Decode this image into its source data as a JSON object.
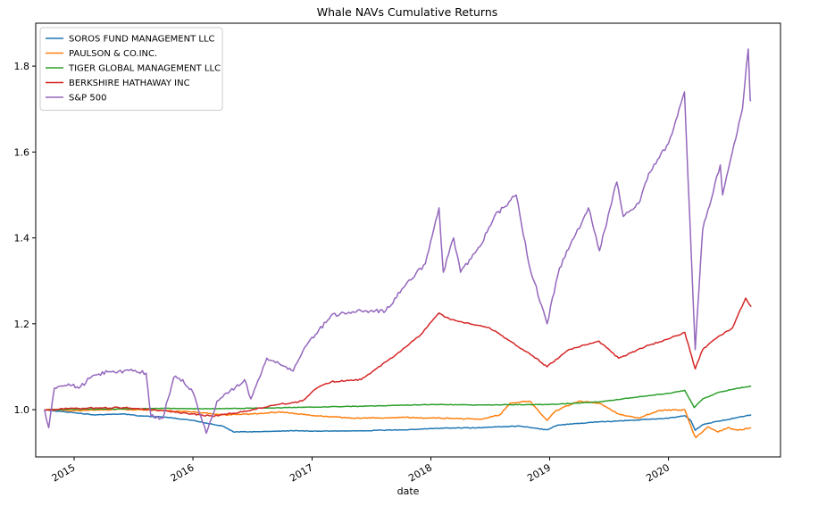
{
  "chart_data": {
    "type": "line",
    "title": "Whale NAVs Cumulative Returns",
    "xlabel": "date",
    "ylabel": "",
    "xlim": [
      "2014-09-05",
      "2020-12-10"
    ],
    "ylim": [
      0.89,
      1.9
    ],
    "x_ticks": [
      "2015-01-01",
      "2016-01-01",
      "2017-01-01",
      "2018-01-01",
      "2019-01-01",
      "2020-01-01"
    ],
    "x_tick_labels": [
      "2015",
      "2016",
      "2017",
      "2018",
      "2019",
      "2020"
    ],
    "y_ticks": [
      1.0,
      1.2,
      1.4,
      1.6,
      1.8
    ],
    "y_tick_labels": [
      "1.0",
      "1.2",
      "1.4",
      "1.6",
      "1.8"
    ],
    "grid": false,
    "legend_position": "top-left",
    "series": [
      {
        "name": "SOROS FUND MANAGEMENT LLC",
        "color": "#1f77b4",
        "points": [
          [
            "2014-10-02",
            1.0
          ],
          [
            "2014-11-01",
            0.997
          ],
          [
            "2015-01-01",
            0.993
          ],
          [
            "2015-03-01",
            0.988
          ],
          [
            "2015-06-01",
            0.99
          ],
          [
            "2015-08-01",
            0.985
          ],
          [
            "2015-10-01",
            0.983
          ],
          [
            "2016-01-01",
            0.975
          ],
          [
            "2016-03-01",
            0.966
          ],
          [
            "2016-04-01",
            0.962
          ],
          [
            "2016-05-05",
            0.948
          ],
          [
            "2016-08-01",
            0.949
          ],
          [
            "2016-11-01",
            0.951
          ],
          [
            "2017-02-01",
            0.95
          ],
          [
            "2017-06-01",
            0.951
          ],
          [
            "2017-10-01",
            0.953
          ],
          [
            "2018-02-01",
            0.957
          ],
          [
            "2018-06-01",
            0.958
          ],
          [
            "2018-10-01",
            0.962
          ],
          [
            "2018-12-24",
            0.953
          ],
          [
            "2019-01-25",
            0.964
          ],
          [
            "2019-05-01",
            0.97
          ],
          [
            "2019-09-01",
            0.975
          ],
          [
            "2020-01-01",
            0.98
          ],
          [
            "2020-02-20",
            0.986
          ],
          [
            "2020-03-10",
            0.974
          ],
          [
            "2020-03-23",
            0.952
          ],
          [
            "2020-04-15",
            0.965
          ],
          [
            "2020-06-01",
            0.973
          ],
          [
            "2020-08-01",
            0.982
          ],
          [
            "2020-09-11",
            0.988
          ]
        ]
      },
      {
        "name": "PAULSON & CO.INC.",
        "color": "#ff7f0e",
        "points": [
          [
            "2014-10-02",
            1.0
          ],
          [
            "2015-01-01",
            0.998
          ],
          [
            "2015-06-01",
            1.001
          ],
          [
            "2015-10-01",
            0.998
          ],
          [
            "2016-01-01",
            0.995
          ],
          [
            "2016-04-01",
            0.988
          ],
          [
            "2016-07-01",
            0.99
          ],
          [
            "2016-10-01",
            0.995
          ],
          [
            "2017-01-01",
            0.986
          ],
          [
            "2017-06-01",
            0.98
          ],
          [
            "2017-10-01",
            0.982
          ],
          [
            "2018-02-01",
            0.98
          ],
          [
            "2018-06-01",
            0.978
          ],
          [
            "2018-08-01",
            0.988
          ],
          [
            "2018-09-01",
            1.015
          ],
          [
            "2018-11-01",
            1.02
          ],
          [
            "2018-12-24",
            0.975
          ],
          [
            "2019-01-20",
            0.998
          ],
          [
            "2019-04-01",
            1.02
          ],
          [
            "2019-06-01",
            1.015
          ],
          [
            "2019-08-01",
            0.99
          ],
          [
            "2019-10-01",
            0.98
          ],
          [
            "2019-12-01",
            0.998
          ],
          [
            "2020-02-20",
            1.0
          ],
          [
            "2020-03-15",
            0.95
          ],
          [
            "2020-03-25",
            0.935
          ],
          [
            "2020-05-01",
            0.96
          ],
          [
            "2020-06-01",
            0.948
          ],
          [
            "2020-07-01",
            0.958
          ],
          [
            "2020-08-01",
            0.952
          ],
          [
            "2020-09-11",
            0.958
          ]
        ]
      },
      {
        "name": "TIGER GLOBAL MANAGEMENT LLC",
        "color": "#2ca02c",
        "points": [
          [
            "2014-10-02",
            1.0
          ],
          [
            "2015-01-01",
            1.001
          ],
          [
            "2015-06-01",
            1.002
          ],
          [
            "2015-10-01",
            1.003
          ],
          [
            "2016-01-01",
            1.002
          ],
          [
            "2016-06-01",
            1.003
          ],
          [
            "2017-01-01",
            1.006
          ],
          [
            "2017-06-01",
            1.008
          ],
          [
            "2018-01-01",
            1.012
          ],
          [
            "2018-06-01",
            1.011
          ],
          [
            "2019-01-01",
            1.012
          ],
          [
            "2019-06-01",
            1.018
          ],
          [
            "2019-10-01",
            1.03
          ],
          [
            "2020-01-01",
            1.038
          ],
          [
            "2020-02-20",
            1.045
          ],
          [
            "2020-03-20",
            1.005
          ],
          [
            "2020-04-15",
            1.025
          ],
          [
            "2020-06-01",
            1.04
          ],
          [
            "2020-08-01",
            1.05
          ],
          [
            "2020-09-11",
            1.055
          ]
        ]
      },
      {
        "name": "BERKSHIRE HATHAWAY INC",
        "color": "#d62728",
        "points": [
          [
            "2014-10-02",
            1.0
          ],
          [
            "2015-01-01",
            1.003
          ],
          [
            "2015-06-01",
            1.005
          ],
          [
            "2015-09-01",
            1.0
          ],
          [
            "2016-01-01",
            0.99
          ],
          [
            "2016-03-01",
            0.985
          ],
          [
            "2016-06-01",
            0.995
          ],
          [
            "2016-09-01",
            1.01
          ],
          [
            "2016-12-01",
            1.02
          ],
          [
            "2017-01-15",
            1.05
          ],
          [
            "2017-03-01",
            1.065
          ],
          [
            "2017-06-01",
            1.07
          ],
          [
            "2017-09-01",
            1.12
          ],
          [
            "2017-12-01",
            1.175
          ],
          [
            "2018-01-26",
            1.225
          ],
          [
            "2018-03-01",
            1.21
          ],
          [
            "2018-05-01",
            1.2
          ],
          [
            "2018-07-01",
            1.19
          ],
          [
            "2018-09-01",
            1.16
          ],
          [
            "2018-11-01",
            1.13
          ],
          [
            "2018-12-24",
            1.1
          ],
          [
            "2019-03-01",
            1.14
          ],
          [
            "2019-06-01",
            1.16
          ],
          [
            "2019-08-01",
            1.12
          ],
          [
            "2019-11-01",
            1.15
          ],
          [
            "2020-01-01",
            1.165
          ],
          [
            "2020-02-20",
            1.18
          ],
          [
            "2020-03-23",
            1.095
          ],
          [
            "2020-04-15",
            1.14
          ],
          [
            "2020-06-01",
            1.17
          ],
          [
            "2020-07-15",
            1.19
          ],
          [
            "2020-08-25",
            1.26
          ],
          [
            "2020-09-11",
            1.24
          ]
        ]
      },
      {
        "name": "S&P 500",
        "color": "#9467bd",
        "points": [
          [
            "2014-10-02",
            1.0
          ],
          [
            "2014-10-15",
            0.958
          ],
          [
            "2014-11-01",
            1.05
          ],
          [
            "2014-12-15",
            1.06
          ],
          [
            "2015-01-15",
            1.05
          ],
          [
            "2015-03-01",
            1.08
          ],
          [
            "2015-05-01",
            1.09
          ],
          [
            "2015-07-01",
            1.09
          ],
          [
            "2015-08-10",
            1.085
          ],
          [
            "2015-08-25",
            0.985
          ],
          [
            "2015-09-30",
            0.98
          ],
          [
            "2015-11-03",
            1.075
          ],
          [
            "2015-12-01",
            1.07
          ],
          [
            "2016-01-01",
            1.04
          ],
          [
            "2016-02-11",
            0.945
          ],
          [
            "2016-03-15",
            1.02
          ],
          [
            "2016-06-08",
            1.07
          ],
          [
            "2016-06-27",
            1.025
          ],
          [
            "2016-08-15",
            1.12
          ],
          [
            "2016-11-04",
            1.09
          ],
          [
            "2016-12-15",
            1.15
          ],
          [
            "2017-03-01",
            1.22
          ],
          [
            "2017-06-01",
            1.23
          ],
          [
            "2017-08-15",
            1.23
          ],
          [
            "2017-10-15",
            1.29
          ],
          [
            "2017-12-15",
            1.34
          ],
          [
            "2018-01-26",
            1.47
          ],
          [
            "2018-02-08",
            1.32
          ],
          [
            "2018-03-12",
            1.4
          ],
          [
            "2018-04-02",
            1.32
          ],
          [
            "2018-06-01",
            1.38
          ],
          [
            "2018-07-15",
            1.45
          ],
          [
            "2018-09-20",
            1.5
          ],
          [
            "2018-10-29",
            1.34
          ],
          [
            "2018-12-24",
            1.2
          ],
          [
            "2019-01-31",
            1.33
          ],
          [
            "2019-04-30",
            1.47
          ],
          [
            "2019-06-03",
            1.37
          ],
          [
            "2019-07-26",
            1.53
          ],
          [
            "2019-08-15",
            1.45
          ],
          [
            "2019-10-01",
            1.48
          ],
          [
            "2019-11-01",
            1.55
          ],
          [
            "2020-01-01",
            1.62
          ],
          [
            "2020-02-19",
            1.74
          ],
          [
            "2020-03-23",
            1.14
          ],
          [
            "2020-04-15",
            1.42
          ],
          [
            "2020-06-08",
            1.57
          ],
          [
            "2020-06-15",
            1.5
          ],
          [
            "2020-07-15",
            1.6
          ],
          [
            "2020-08-15",
            1.7
          ],
          [
            "2020-09-02",
            1.84
          ],
          [
            "2020-09-08",
            1.72
          ],
          [
            "2020-09-11",
            1.72
          ]
        ]
      }
    ]
  }
}
